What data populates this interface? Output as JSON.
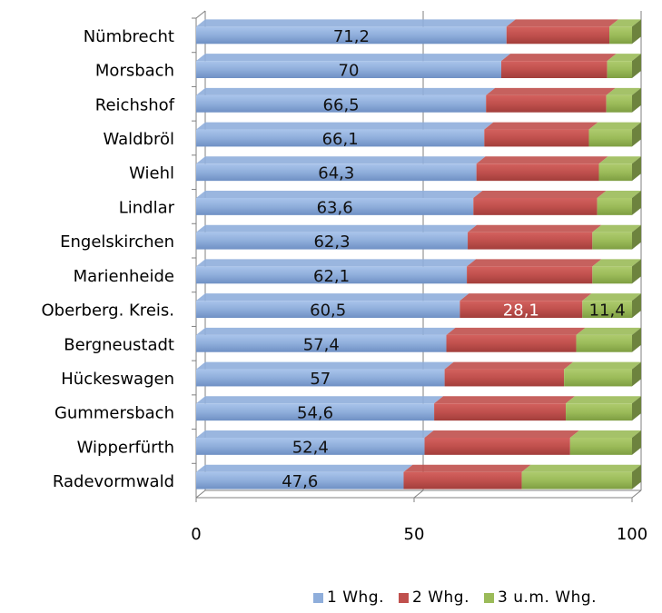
{
  "chart_data": {
    "type": "bar",
    "orientation": "horizontal",
    "stacked": true,
    "categories": [
      "Nümbrecht",
      "Morsbach",
      "Reichshof",
      "Waldbröl",
      "Wiehl",
      "Lindlar",
      "Engelskirchen",
      "Marienheide",
      "Oberberg. Kreis.",
      "Bergneustadt",
      "Hückeswagen",
      "Gummersbach",
      "Wipperfürth",
      "Radevormwald"
    ],
    "series": [
      {
        "name": "1 Whg.",
        "color": "#8FAEDB",
        "values": [
          71.2,
          70,
          66.5,
          66.1,
          64.3,
          63.6,
          62.3,
          62.1,
          60.5,
          57.4,
          57,
          54.6,
          52.4,
          47.6
        ]
      },
      {
        "name": "2 Whg.",
        "color": "#C0504D",
        "values": [
          23.6,
          24.3,
          27.6,
          24.0,
          28.1,
          28.4,
          28.6,
          28.8,
          28.1,
          29.8,
          27.4,
          30.2,
          33.4,
          27.1
        ]
      },
      {
        "name": "3 u.m. Whg.",
        "color": "#9BBB59",
        "values": [
          5.2,
          5.7,
          5.9,
          9.9,
          7.6,
          8.0,
          9.1,
          9.1,
          11.4,
          12.8,
          15.6,
          15.2,
          14.2,
          25.3
        ]
      }
    ],
    "data_labels": [
      [
        "71,2",
        "70",
        "66,5",
        "66,1",
        "64,3",
        "63,6",
        "62,3",
        "62,1",
        "60,5",
        "57,4",
        "57",
        "54,6",
        "52,4",
        "47,6"
      ],
      [
        null,
        null,
        null,
        null,
        null,
        null,
        null,
        null,
        "28,1",
        null,
        null,
        null,
        null,
        null
      ],
      [
        null,
        null,
        null,
        null,
        null,
        null,
        null,
        null,
        "11,4",
        null,
        null,
        null,
        null,
        null
      ]
    ],
    "xlim": [
      0,
      100
    ],
    "xticks": [
      "0",
      "50",
      "100"
    ],
    "grid": true,
    "legend_position": "bottom-right"
  }
}
